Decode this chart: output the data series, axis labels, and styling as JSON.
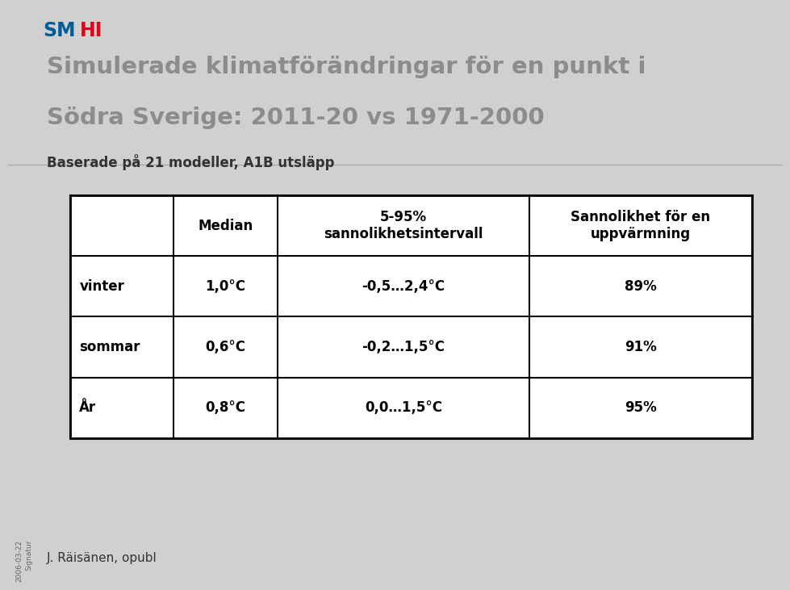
{
  "title_line1": "Simulerade klimatförändringar för en punkt i",
  "title_line2": "Södra Sverige: 2011-20 vs 1971-2000",
  "subtitle": "Baserade på 21 modeller, A1B utsläpp",
  "bg_color_top": "#ffffff",
  "bg_color_bottom": "#d0d0d0",
  "smhi_blue": "#005b99",
  "smhi_red": "#e2001a",
  "table_header": [
    "",
    "Median",
    "5-95%\nsannolikhetsintervall",
    "Sannolikhet för en\nuppvärmning"
  ],
  "table_rows": [
    [
      "vinter",
      "1,0°C",
      "-0,5…2,4°C",
      "89%"
    ],
    [
      "sommar",
      "0,6°C",
      "-0,2…1,5°C",
      "91%"
    ],
    [
      "År",
      "0,8°C",
      "0,0…1,5°C",
      "95%"
    ]
  ],
  "footer_text": "J. Räisänen, opubl",
  "footer_date": "2006-03-22",
  "title_color": "#8c8c8c",
  "subtitle_color": "#333333",
  "table_text_color": "#000000",
  "table_bg": "#ffffff",
  "table_border_color": "#000000"
}
